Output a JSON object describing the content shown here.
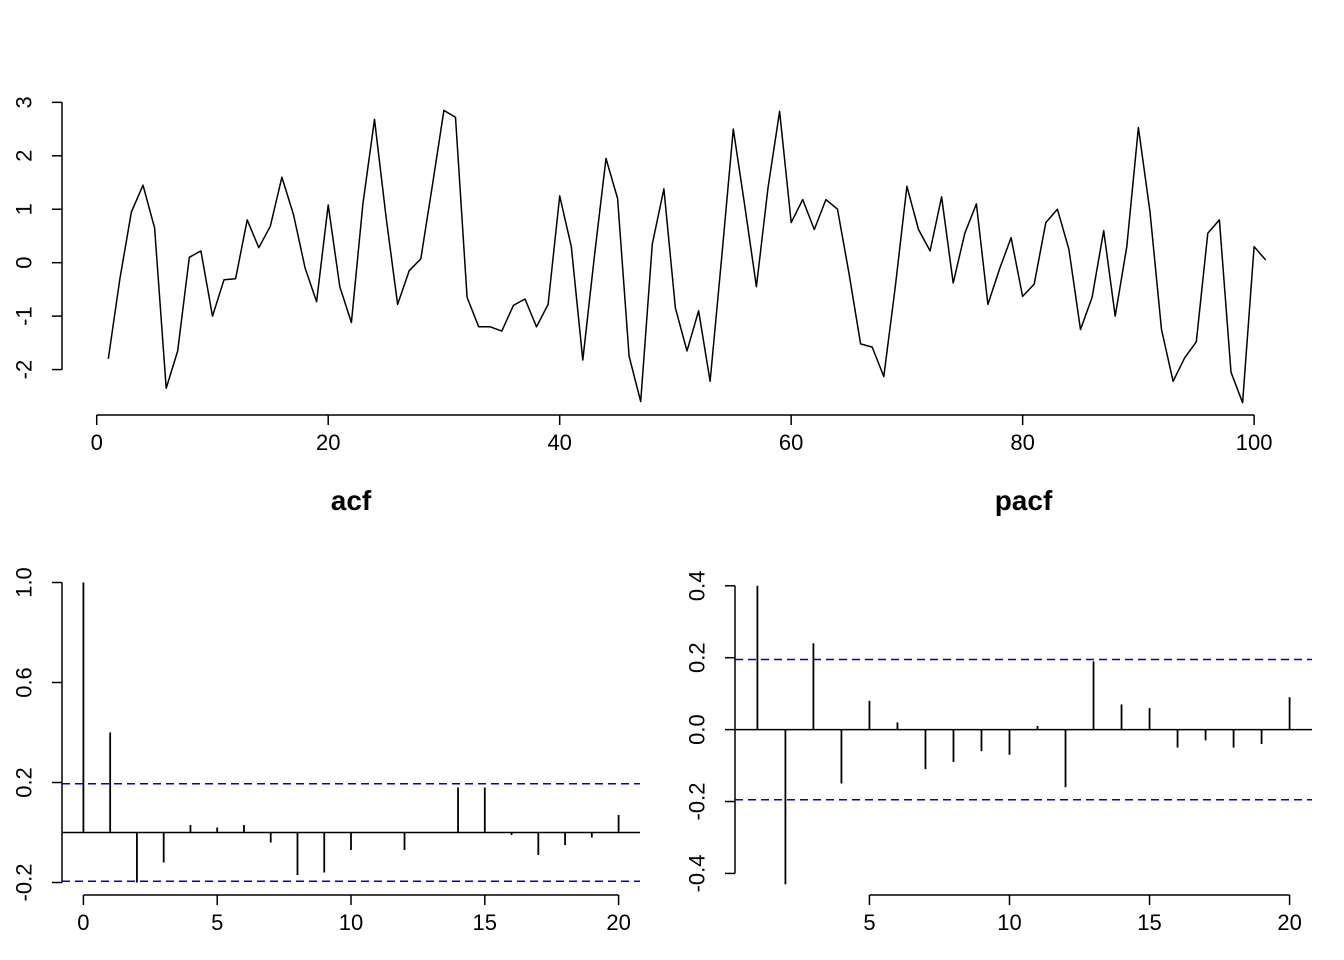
{
  "chart_data": [
    {
      "type": "line",
      "title": "",
      "xlabel": "",
      "ylabel": "",
      "xlim": [
        -3,
        105
      ],
      "ylim": [
        -2.85,
        3.1
      ],
      "x_ticks": [
        0,
        20,
        40,
        60,
        80,
        100
      ],
      "y_ticks": [
        -2,
        -1,
        0,
        1,
        2,
        3
      ],
      "x_tick_labels": [
        "0",
        "20",
        "40",
        "60",
        "80",
        "100"
      ],
      "y_tick_labels": [
        "-2",
        "-1",
        "0",
        "1",
        "2",
        "3"
      ],
      "x": [
        1,
        2,
        3,
        4,
        5,
        6,
        7,
        8,
        9,
        10,
        11,
        12,
        13,
        14,
        15,
        16,
        17,
        18,
        19,
        20,
        21,
        22,
        23,
        24,
        25,
        26,
        27,
        28,
        29,
        30,
        31,
        32,
        33,
        34,
        35,
        36,
        37,
        38,
        39,
        40,
        41,
        42,
        43,
        44,
        45,
        46,
        47,
        48,
        49,
        50,
        51,
        52,
        53,
        54,
        55,
        56,
        57,
        58,
        59,
        60,
        61,
        62,
        63,
        64,
        65,
        66,
        67,
        68,
        69,
        70,
        71,
        72,
        73,
        74,
        75,
        76,
        77,
        78,
        79,
        80,
        81,
        82,
        83,
        84,
        85,
        86,
        87,
        88,
        89,
        90,
        91,
        92,
        93,
        94,
        95,
        96,
        97,
        98,
        99,
        100,
        101
      ],
      "series": [
        {
          "values": [
            -1.8,
            -0.3,
            0.95,
            1.45,
            0.65,
            -2.35,
            -1.65,
            0.1,
            0.22,
            -1.0,
            -0.32,
            -0.3,
            0.8,
            0.28,
            0.68,
            1.6,
            0.9,
            -0.1,
            -0.73,
            1.08,
            -0.45,
            -1.12,
            1.1,
            2.68,
            0.85,
            -0.78,
            -0.15,
            0.07,
            1.45,
            2.85,
            2.72,
            -0.65,
            -1.2,
            -1.2,
            -1.28,
            -0.8,
            -0.68,
            -1.2,
            -0.78,
            1.25,
            0.3,
            -1.82,
            0.12,
            1.95,
            1.2,
            -1.75,
            -2.6,
            0.35,
            1.38,
            -0.85,
            -1.65,
            -0.9,
            -2.22,
            0.1,
            2.5,
            1.05,
            -0.45,
            1.4,
            2.83,
            0.75,
            1.18,
            0.62,
            1.18,
            1.0,
            -0.2,
            -1.52,
            -1.58,
            -2.13,
            -0.45,
            1.43,
            0.62,
            0.22,
            1.23,
            -0.38,
            0.55,
            1.1,
            -0.78,
            -0.12,
            0.47,
            -0.63,
            -0.4,
            0.75,
            1.0,
            0.25,
            -1.25,
            -0.65,
            0.6,
            -1.0,
            0.3,
            2.53,
            0.95,
            -1.25,
            -2.22,
            -1.78,
            -1.48,
            0.55,
            0.8,
            -2.05,
            -2.62,
            0.3,
            0.05
          ]
        }
      ]
    },
    {
      "type": "bar",
      "title": "acf",
      "xlabel": "",
      "ylabel": "",
      "xlim": [
        -0.8,
        20.8
      ],
      "ylim": [
        -0.25,
        1.03
      ],
      "x_ticks": [
        0,
        5,
        10,
        15,
        20
      ],
      "y_ticks": [
        -0.2,
        0.2,
        0.6,
        1.0
      ],
      "x_tick_labels": [
        "0",
        "5",
        "10",
        "15",
        "20"
      ],
      "y_tick_labels": [
        "-0.2",
        "0.2",
        "0.6",
        "1.0"
      ],
      "confidence_bound": 0.195,
      "lags": [
        0,
        1,
        2,
        3,
        4,
        5,
        6,
        7,
        8,
        9,
        10,
        11,
        12,
        13,
        14,
        15,
        16,
        17,
        18,
        19,
        20
      ],
      "values": [
        1.0,
        0.4,
        -0.2,
        -0.12,
        0.03,
        0.02,
        0.03,
        -0.04,
        -0.17,
        -0.16,
        -0.07,
        0.0,
        -0.07,
        0.0,
        0.18,
        0.18,
        -0.01,
        -0.09,
        -0.05,
        -0.02,
        0.07
      ]
    },
    {
      "type": "bar",
      "title": "pacf",
      "xlabel": "",
      "ylabel": "",
      "xlim": [
        0.2,
        20.8
      ],
      "ylim": [
        -0.46,
        0.43
      ],
      "x_ticks": [
        5,
        10,
        15,
        20
      ],
      "y_ticks": [
        -0.4,
        -0.2,
        0.0,
        0.2,
        0.4
      ],
      "x_tick_labels": [
        "5",
        "10",
        "15",
        "20"
      ],
      "y_tick_labels": [
        "-0.4",
        "-0.2",
        "0.0",
        "0.2",
        "0.4"
      ],
      "confidence_bound": 0.195,
      "lags": [
        1,
        2,
        3,
        4,
        5,
        6,
        7,
        8,
        9,
        10,
        11,
        12,
        13,
        14,
        15,
        16,
        17,
        18,
        19,
        20
      ],
      "values": [
        0.4,
        -0.43,
        0.24,
        -0.15,
        0.08,
        0.02,
        -0.11,
        -0.09,
        -0.06,
        -0.07,
        0.01,
        -0.16,
        0.19,
        0.07,
        0.06,
        -0.05,
        -0.03,
        -0.05,
        -0.04,
        0.09
      ]
    }
  ]
}
